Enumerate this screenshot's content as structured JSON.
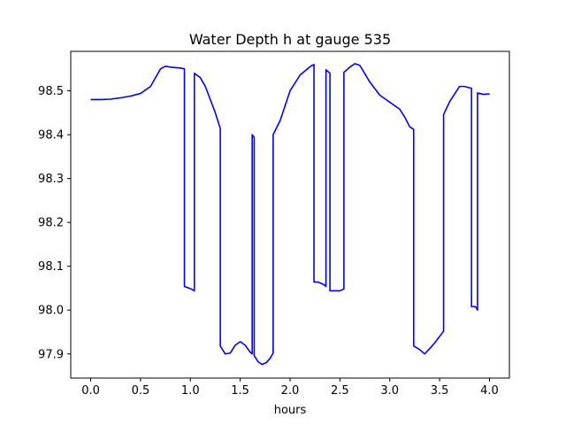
{
  "chart_data": {
    "type": "line",
    "title": "Water Depth h at gauge 535",
    "xlabel": "hours",
    "ylabel": "",
    "xlim": [
      -0.2,
      4.2
    ],
    "ylim": [
      97.845,
      98.59
    ],
    "xticks": [
      0.0,
      0.5,
      1.0,
      1.5,
      2.0,
      2.5,
      3.0,
      3.5,
      4.0
    ],
    "xtick_labels": [
      "0.0",
      "0.5",
      "1.0",
      "1.5",
      "2.0",
      "2.5",
      "3.0",
      "3.5",
      "4.0"
    ],
    "yticks": [
      97.9,
      98.0,
      98.1,
      98.2,
      98.3,
      98.4,
      98.5
    ],
    "ytick_labels": [
      "97.9",
      "98.0",
      "98.1",
      "98.2",
      "98.3",
      "98.4",
      "98.5"
    ],
    "grid": false,
    "series": [
      {
        "color": "#0000ff",
        "x": [
          0.0,
          0.1,
          0.2,
          0.3,
          0.4,
          0.5,
          0.6,
          0.65,
          0.7,
          0.75,
          0.8,
          0.9,
          0.94,
          0.94,
          1.0,
          1.04,
          1.04,
          1.1,
          1.15,
          1.2,
          1.25,
          1.3,
          1.3,
          1.35,
          1.4,
          1.45,
          1.5,
          1.55,
          1.6,
          1.62,
          1.62,
          1.64,
          1.64,
          1.68,
          1.72,
          1.76,
          1.8,
          1.83,
          1.83,
          1.9,
          2.0,
          2.1,
          2.2,
          2.24,
          2.24,
          2.28,
          2.3,
          2.34,
          2.36,
          2.36,
          2.4,
          2.4,
          2.5,
          2.5,
          2.54,
          2.54,
          2.6,
          2.65,
          2.7,
          2.8,
          2.9,
          3.0,
          3.1,
          3.15,
          3.2,
          3.24,
          3.24,
          3.3,
          3.35,
          3.4,
          3.45,
          3.5,
          3.54,
          3.54,
          3.6,
          3.7,
          3.75,
          3.8,
          3.82,
          3.82,
          3.86,
          3.88,
          3.88,
          3.94,
          4.0
        ],
        "y": [
          98.48,
          98.48,
          98.481,
          98.484,
          98.488,
          98.494,
          98.51,
          98.53,
          98.55,
          98.556,
          98.554,
          98.552,
          98.55,
          98.054,
          98.049,
          98.044,
          98.54,
          98.53,
          98.51,
          98.48,
          98.45,
          98.414,
          97.918,
          97.9,
          97.902,
          97.92,
          97.928,
          97.92,
          97.904,
          97.9,
          98.4,
          98.394,
          97.896,
          97.882,
          97.876,
          97.88,
          97.89,
          97.902,
          98.4,
          98.432,
          98.5,
          98.536,
          98.555,
          98.56,
          98.064,
          98.064,
          98.062,
          98.058,
          98.054,
          98.548,
          98.54,
          98.044,
          98.044,
          98.044,
          98.048,
          98.542,
          98.554,
          98.562,
          98.558,
          98.52,
          98.49,
          98.474,
          98.458,
          98.44,
          98.418,
          98.412,
          97.918,
          97.91,
          97.9,
          97.912,
          97.925,
          97.94,
          97.952,
          98.446,
          98.475,
          98.51,
          98.51,
          98.507,
          98.506,
          98.008,
          98.008,
          98.0,
          98.495,
          98.492,
          98.493
        ]
      }
    ]
  }
}
